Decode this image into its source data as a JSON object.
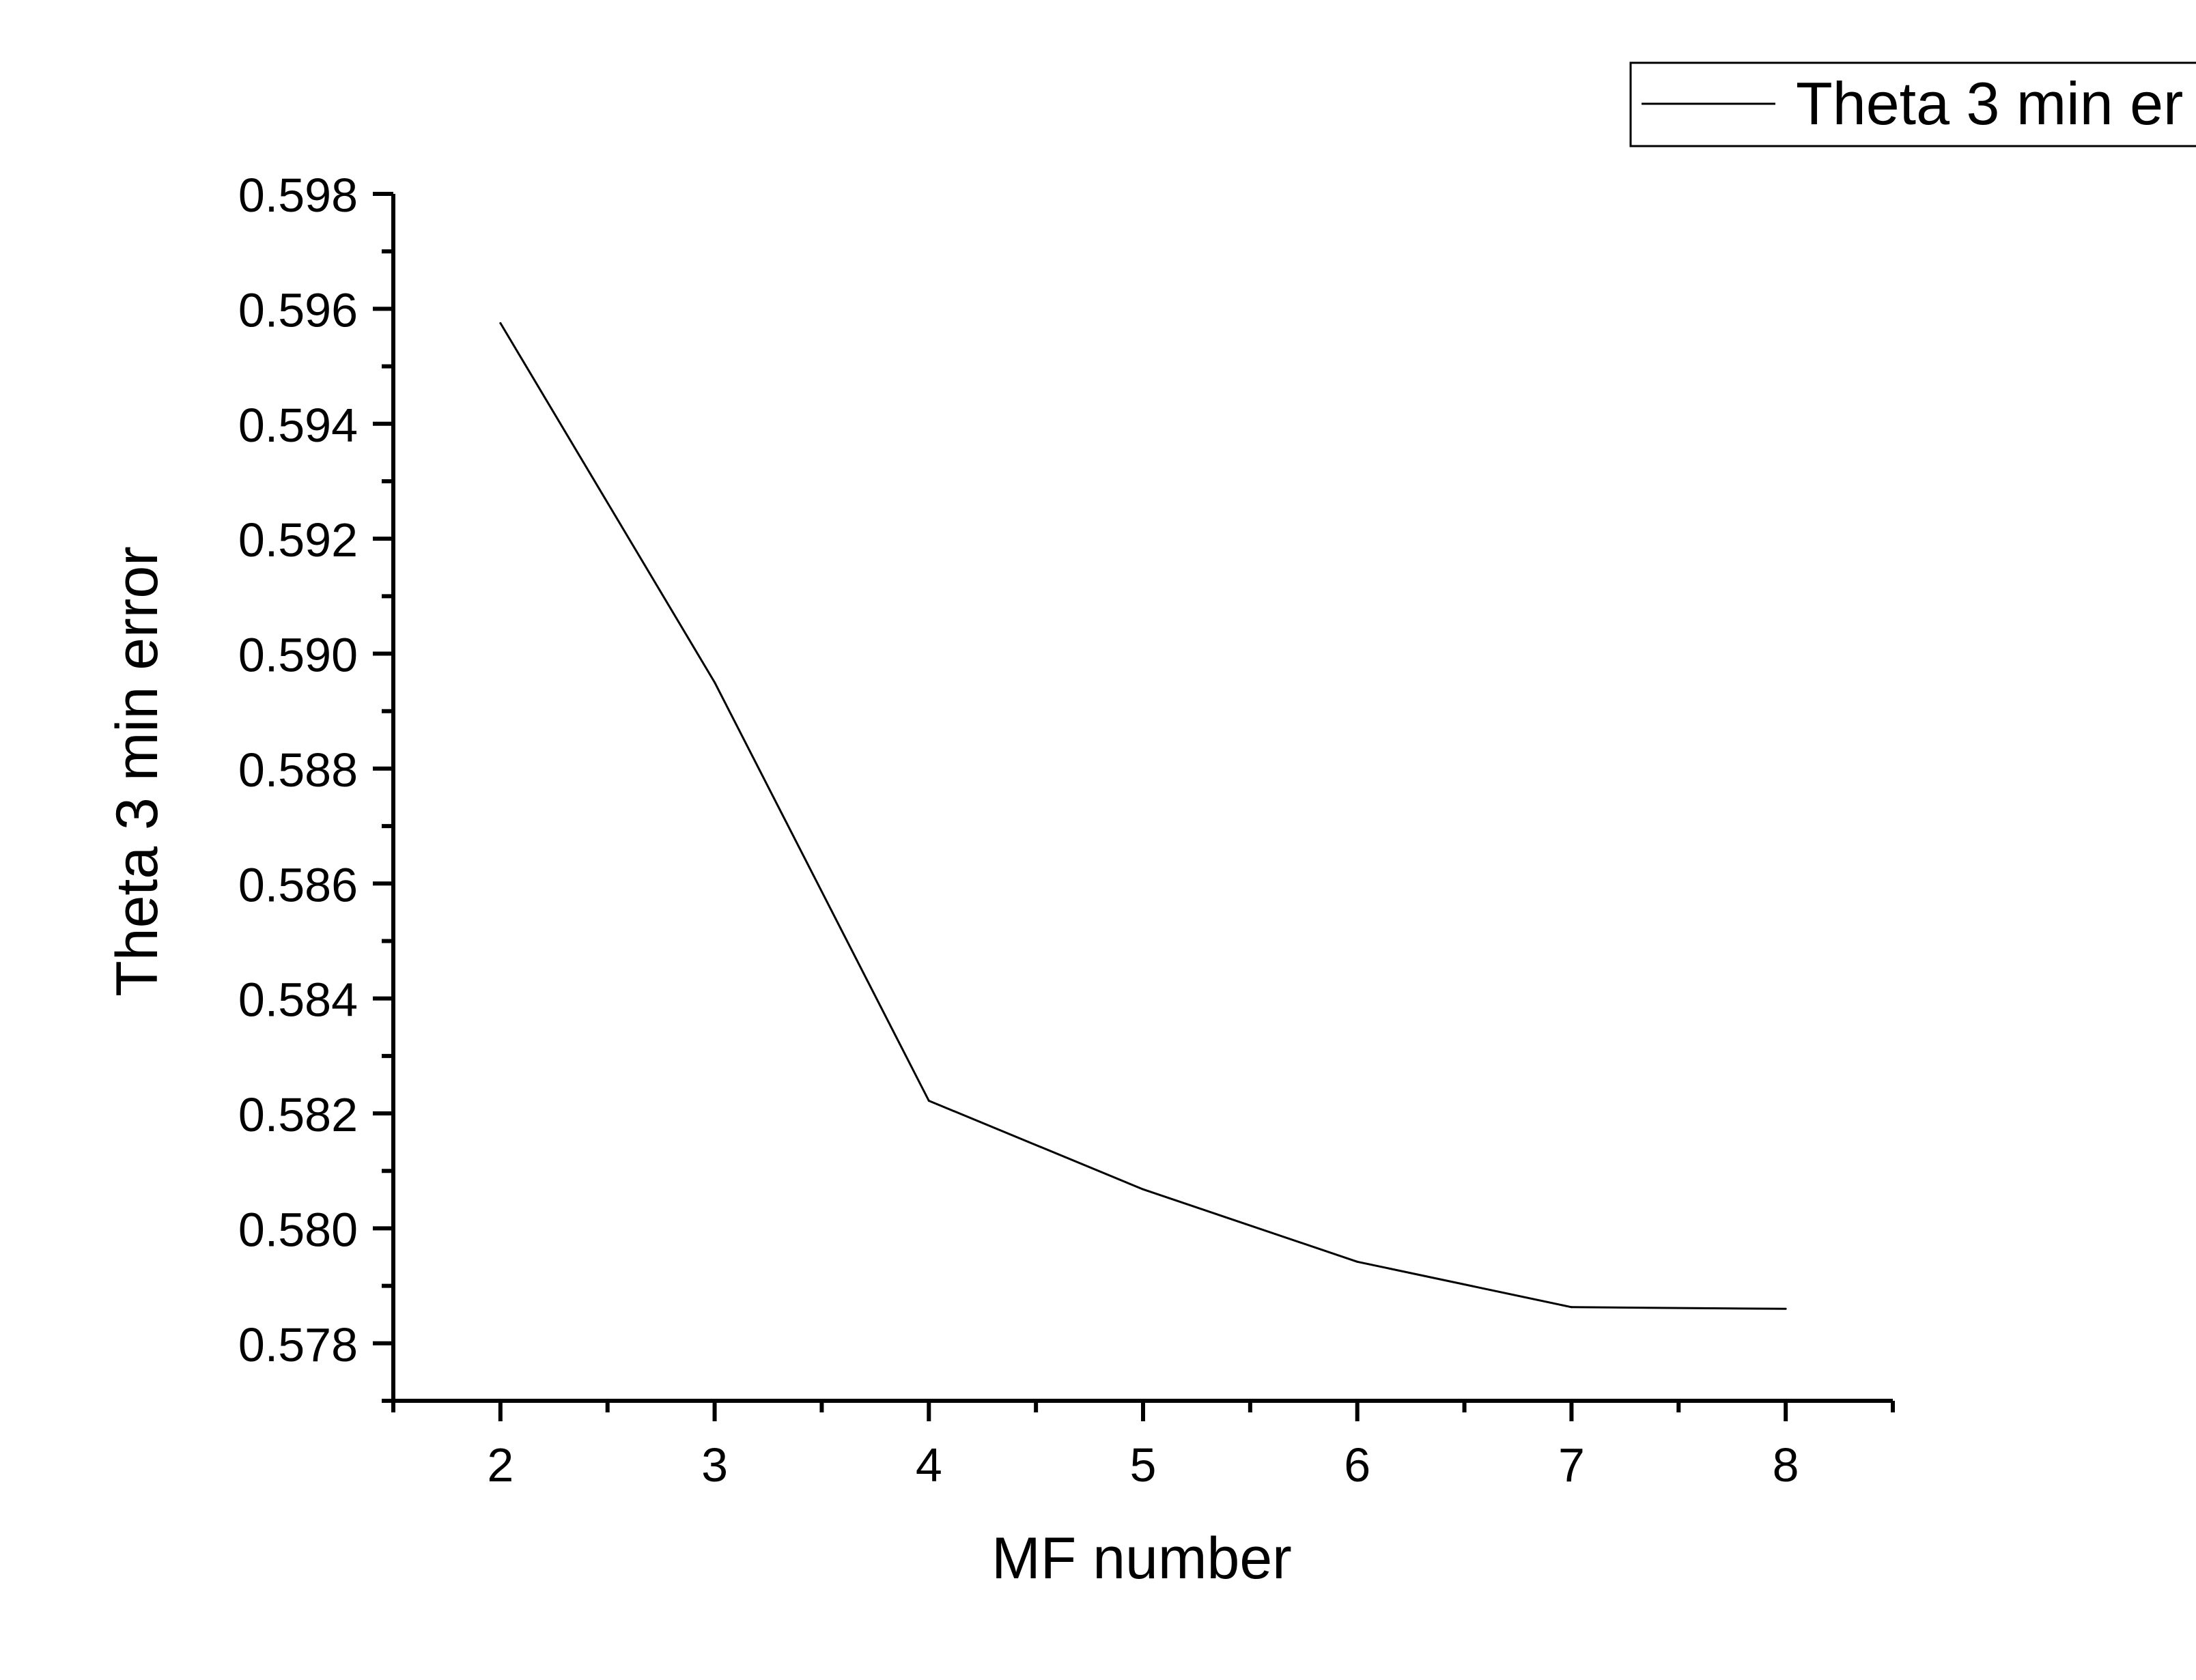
{
  "chart_data": {
    "type": "line",
    "x": [
      2,
      3,
      4,
      5,
      6,
      7,
      8
    ],
    "series": [
      {
        "name": "Theta 3 min er",
        "values": [
          0.59575,
          0.5895,
          0.58222,
          0.58068,
          0.57942,
          0.57863,
          0.5786
        ]
      }
    ],
    "xlabel": "MF number",
    "ylabel": "Theta 3 min error",
    "xlim": [
      1.5,
      8.5
    ],
    "ylim": [
      0.577,
      0.598
    ],
    "xticks": [
      "2",
      "3",
      "4",
      "5",
      "6",
      "7",
      "8"
    ],
    "yticks": [
      "0.578",
      "0.580",
      "0.582",
      "0.584",
      "0.586",
      "0.588",
      "0.590",
      "0.592",
      "0.594",
      "0.596",
      "0.598"
    ],
    "grid": false,
    "legend": "top-right",
    "line_color": "#000000"
  }
}
